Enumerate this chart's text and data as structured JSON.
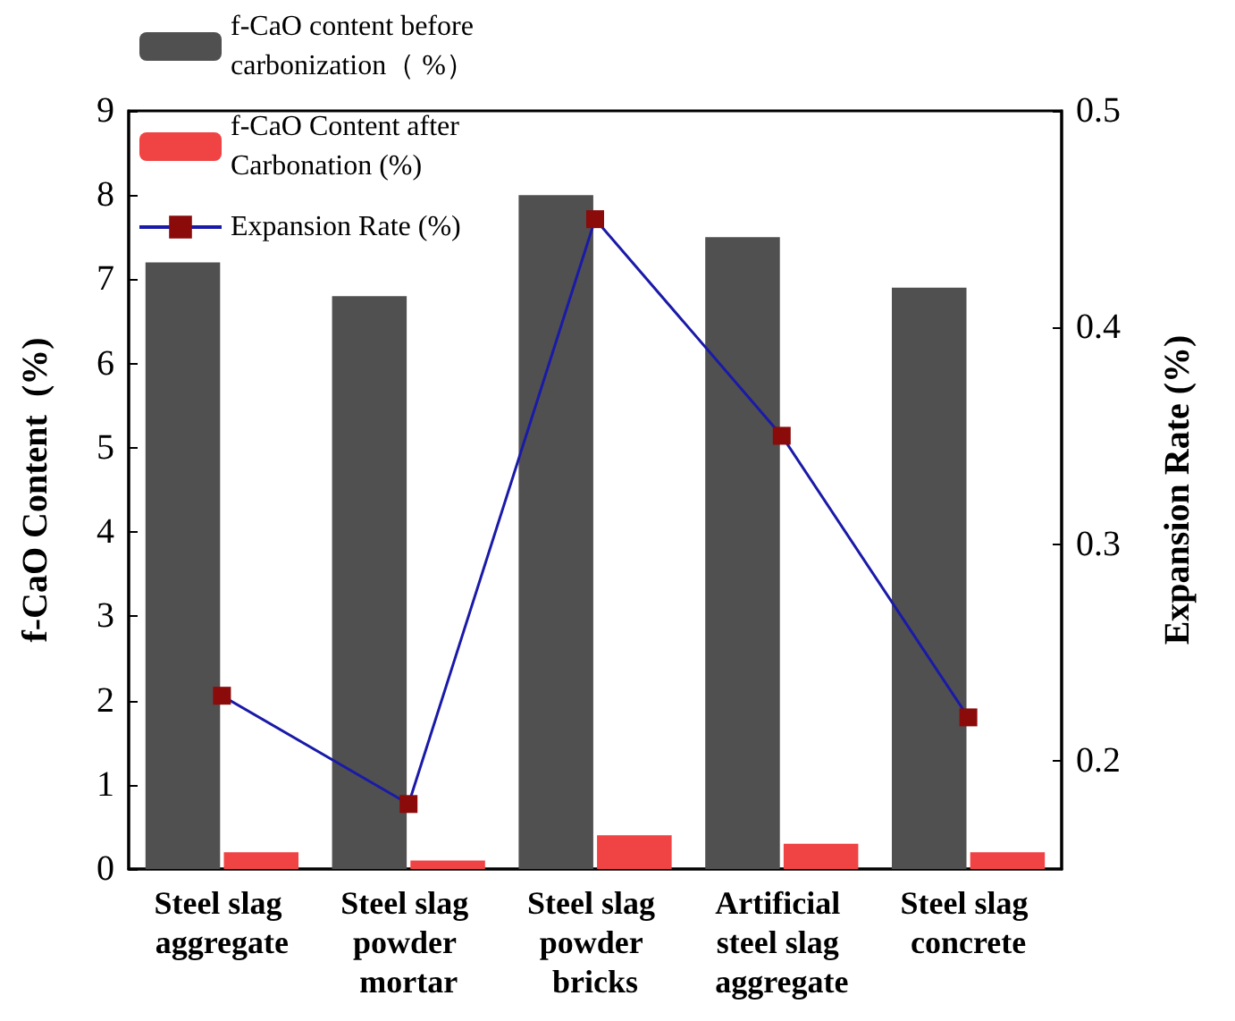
{
  "chart_data": {
    "type": "bar",
    "categories": [
      "Steel slag aggregate",
      "Steel slag powder mortar",
      "Steel slag powder bricks",
      "Artificial steel slag aggregate",
      "Steel slag concrete"
    ],
    "ylabel": "f-CaO Content  (%)",
    "y2label": "Expansion Rate (%)",
    "series": [
      {
        "name": "f-CaO content before carbonization（ %）",
        "color": "#505050",
        "values": [
          7.2,
          6.8,
          8.0,
          7.5,
          6.9
        ]
      },
      {
        "name": "f-CaO Content after Carbonation (%)",
        "color": "#f04343",
        "values": [
          0.2,
          0.1,
          0.4,
          0.3,
          0.2
        ]
      },
      {
        "name": "Expansion Rate (%)",
        "type": "line",
        "axis": "y2",
        "color": "#1a1aa8",
        "colors": [
          "#8b0a0a",
          "#8b0a0a",
          "#8b0a0a",
          "#8b0a0a",
          "#8b0a0a"
        ],
        "marker": "square",
        "values": [
          0.23,
          0.18,
          0.45,
          0.35,
          0.22
        ]
      }
    ],
    "ylim": [
      0,
      9
    ],
    "yticks": [
      0,
      1,
      2,
      3,
      4,
      5,
      6,
      7,
      8,
      9
    ],
    "y2lim": [
      0.15,
      0.5
    ],
    "y2ticks": [
      0.2,
      0.3,
      0.4,
      0.5
    ],
    "legend": "top left",
    "grid": false
  }
}
